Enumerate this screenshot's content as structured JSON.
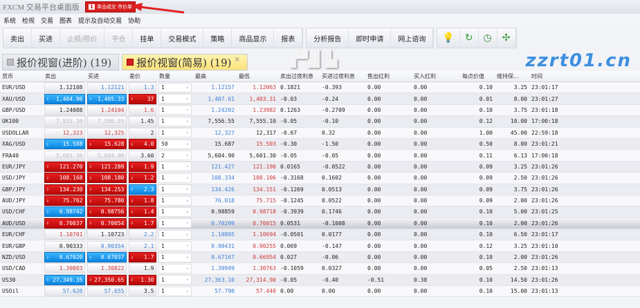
{
  "window": {
    "title": "FXCM 交易平台桌面版",
    "badge_num": "1",
    "badge_text": "单击成交 市价单"
  },
  "menu": [
    "系统",
    "检视",
    "交易",
    "图表",
    "提示及自动交易",
    "协助"
  ],
  "toolbar": {
    "group1": [
      {
        "label": "卖出",
        "enabled": true
      },
      {
        "label": "买进",
        "enabled": true
      },
      {
        "label": "止损/限价",
        "enabled": false
      },
      {
        "label": "平仓",
        "enabled": false
      },
      {
        "label": "挂单",
        "enabled": true
      },
      {
        "label": "交易模式",
        "enabled": true
      },
      {
        "label": "策略",
        "enabled": true
      },
      {
        "label": "商品显示",
        "enabled": true
      },
      {
        "label": "报表",
        "enabled": true
      }
    ],
    "group2": [
      "分析报告",
      "即时申请",
      "网上谘询"
    ],
    "icons": [
      "lightbulb-icon",
      "refresh-icon",
      "clock-icon",
      "network-icon"
    ]
  },
  "tabs": [
    {
      "label": "报价视窗(进阶) (19)",
      "active": false
    },
    {
      "label": "报价视窗(简易) (19)",
      "active": true,
      "close": "×"
    }
  ],
  "colors": {
    "up": "#0a84e0",
    "down": "#c81010",
    "active_tab": "#fbe27a"
  },
  "table": {
    "columns": [
      "货币",
      "卖出",
      "买进",
      "差价",
      "数量",
      "最高",
      "最低",
      "卖出过夜利息",
      "买进过夜利息",
      "售出红利",
      "买入红利",
      "每点价值",
      "维持保...",
      "时间"
    ],
    "rows": [
      {
        "sym": "EUR/USD",
        "sell": "1.12108",
        "sell_s": "k",
        "buy": "1.12121",
        "buy_s": "b",
        "spread": "1.3",
        "spread_s": "b",
        "qty": "1",
        "high": "1.12157",
        "high_s": "b",
        "low": "1.12063",
        "low_s": "rd",
        "ss": "0.1821",
        "bs": "-0.393",
        "sd": "0.00",
        "bd": "0.00",
        "pip": "0.10",
        "mm": "3.25",
        "time": "23:01:17"
      },
      {
        "sym": "XAU/USD",
        "sell": "1,404.96",
        "sell_s": "up",
        "buy": "1,405.33",
        "buy_s": "up",
        "spread": "37",
        "spread_s": "down",
        "qty": "1",
        "high": "1,407.61",
        "high_s": "b",
        "low": "1,403.31",
        "low_s": "rd",
        "ss": "-0.03",
        "bs": "-0.24",
        "sd": "0.00",
        "bd": "0.00",
        "pip": "0.01",
        "mm": "8.00",
        "time": "23:01:27"
      },
      {
        "sym": "GBP/USD",
        "sell": "1.24088",
        "sell_s": "k",
        "buy": "1.24104",
        "buy_s": "rd",
        "spread": "1.6",
        "spread_s": "rd",
        "qty": "1",
        "high": "1.24202",
        "high_s": "b",
        "low": "1.23982",
        "low_s": "rd",
        "ss": "0.1263",
        "bs": "-0.2709",
        "sd": "0.00",
        "bd": "0.00",
        "pip": "0.10",
        "mm": "3.75",
        "time": "23:01:18"
      },
      {
        "sym": "UK100",
        "sell": "7,555.10",
        "sell_s": "g",
        "buy": "7,556.55",
        "buy_s": "g",
        "spread": "1.45",
        "spread_s": "k",
        "qty": "1",
        "high": "7,556.55",
        "high_s": "k",
        "low": "7,555.10",
        "low_s": "k",
        "ss": "-0.05",
        "bs": "-0.10",
        "sd": "0.00",
        "bd": "0.00",
        "pip": "0.12",
        "mm": "10.00",
        "time": "17:00:18"
      },
      {
        "sym": "USDOLLAR",
        "sell": "12,323",
        "sell_s": "rd",
        "buy": "12,325",
        "buy_s": "rd",
        "spread": "2",
        "spread_s": "k",
        "qty": "1",
        "high": "12,327",
        "high_s": "b",
        "low": "12,317",
        "low_s": "k",
        "ss": "-0.67",
        "bs": "0.32",
        "sd": "0.00",
        "bd": "0.00",
        "pip": "1.00",
        "mm": "45.00",
        "time": "22:59:18"
      },
      {
        "sym": "XAG/USD",
        "sell": "15.588",
        "sell_s": "up",
        "buy": "15.628",
        "buy_s": "down",
        "spread": "4.0",
        "spread_s": "down",
        "qty": "50",
        "high": "15.687",
        "high_s": "k",
        "low": "15.503",
        "low_s": "rd",
        "ss": "-0.30",
        "bs": "-1.50",
        "sd": "0.00",
        "bd": "0.00",
        "pip": "0.50",
        "mm": "8.00",
        "time": "23:01:21"
      },
      {
        "sym": "FRA40",
        "sell": "5,601.30",
        "sell_s": "g",
        "buy": "5,604.90",
        "buy_s": "g",
        "spread": "3.60",
        "spread_s": "k",
        "qty": "2",
        "high": "5,604.90",
        "high_s": "k",
        "low": "5,601.30",
        "low_s": "k",
        "ss": "-0.05",
        "bs": "-0.05",
        "sd": "0.00",
        "bd": "0.00",
        "pip": "0.11",
        "mm": "6.13",
        "time": "17:00:18"
      },
      {
        "sym": "EUR/JPY",
        "sell": "121.270",
        "sell_s": "down",
        "buy": "121.289",
        "buy_s": "down",
        "spread": "1.9",
        "spread_s": "down",
        "qty": "1",
        "high": "121.427",
        "high_s": "b",
        "low": "121.190",
        "low_s": "rd",
        "ss": "0.0165",
        "bs": "-0.0522",
        "sd": "0.00",
        "bd": "0.00",
        "pip": "0.09",
        "mm": "3.25",
        "time": "23:01:26"
      },
      {
        "sym": "USD/JPY",
        "sell": "108.168",
        "sell_s": "down",
        "buy": "108.180",
        "buy_s": "down",
        "spread": "1.2",
        "spread_s": "down",
        "qty": "1",
        "high": "108.334",
        "high_s": "b",
        "low": "108.106",
        "low_s": "rd",
        "ss": "-0.3168",
        "bs": "0.1602",
        "sd": "0.00",
        "bd": "0.00",
        "pip": "0.09",
        "mm": "2.50",
        "time": "23:01:26"
      },
      {
        "sym": "GBP/JPY",
        "sell": "134.230",
        "sell_s": "down",
        "buy": "134.253",
        "buy_s": "down",
        "spread": "2.3",
        "spread_s": "up",
        "qty": "1",
        "high": "134.426",
        "high_s": "b",
        "low": "134.151",
        "low_s": "rd",
        "ss": "-0.1269",
        "bs": "0.0513",
        "sd": "0.00",
        "bd": "0.00",
        "pip": "0.09",
        "mm": "3.75",
        "time": "23:01:26"
      },
      {
        "sym": "AUD/JPY",
        "sell": "75.762",
        "sell_s": "down",
        "buy": "75.780",
        "buy_s": "down",
        "spread": "1.8",
        "spread_s": "down",
        "qty": "1",
        "high": "76.018",
        "high_s": "b",
        "low": "75.715",
        "low_s": "rd",
        "ss": "-0.1245",
        "bs": "0.0522",
        "sd": "0.00",
        "bd": "0.00",
        "pip": "0.09",
        "mm": "2.00",
        "time": "23:01:26"
      },
      {
        "sym": "USD/CHF",
        "sell": "0.98742",
        "sell_s": "up",
        "buy": "0.98756",
        "buy_s": "down",
        "spread": "1.4",
        "spread_s": "down",
        "qty": "1",
        "high": "0.98859",
        "high_s": "k",
        "low": "0.98718",
        "low_s": "rd",
        "ss": "-0.3939",
        "bs": "0.1746",
        "sd": "0.00",
        "bd": "0.00",
        "pip": "0.10",
        "mm": "5.00",
        "time": "23:01:25"
      },
      {
        "sym": "AUD/USD",
        "selected": true,
        "sell": "0.70037",
        "sell_s": "down",
        "buy": "0.70054",
        "buy_s": "down",
        "spread": "1.7",
        "spread_s": "down",
        "qty": "1",
        "high": "0.70209",
        "high_s": "b",
        "low": "0.70015",
        "low_s": "rd",
        "ss": "0.0531",
        "bs": "-0.1008",
        "sd": "0.00",
        "bd": "0.00",
        "pip": "0.10",
        "mm": "2.00",
        "time": "23:01:26"
      },
      {
        "sym": "EUR/CHF",
        "sell": "1.10701",
        "sell_s": "rd",
        "buy": "1.10723",
        "buy_s": "k",
        "spread": "2.2",
        "spread_s": "b",
        "qty": "1",
        "high": "1.10805",
        "high_s": "b",
        "low": "1.10694",
        "low_s": "rd",
        "ss": "-0.0501",
        "bs": "0.0177",
        "sd": "0.00",
        "bd": "0.00",
        "pip": "0.10",
        "mm": "6.50",
        "time": "23:01:17"
      },
      {
        "sym": "EUR/GBP",
        "sell": "0.90333",
        "sell_s": "k",
        "buy": "0.90354",
        "buy_s": "b",
        "spread": "2.1",
        "spread_s": "b",
        "qty": "1",
        "high": "0.90431",
        "high_s": "b",
        "low": "0.90255",
        "low_s": "rd",
        "ss": "0.069",
        "bs": "-0.147",
        "sd": "0.00",
        "bd": "0.00",
        "pip": "0.12",
        "mm": "3.25",
        "time": "23:01:10"
      },
      {
        "sym": "NZD/USD",
        "sell": "0.67020",
        "sell_s": "up",
        "buy": "0.67037",
        "buy_s": "up",
        "spread": "1.7",
        "spread_s": "down",
        "qty": "1",
        "high": "0.67167",
        "high_s": "b",
        "low": "0.66954",
        "low_s": "rd",
        "ss": "0.027",
        "bs": "-0.06",
        "sd": "0.00",
        "bd": "0.00",
        "pip": "0.10",
        "mm": "2.00",
        "time": "23:01:26"
      },
      {
        "sym": "USD/CAD",
        "sell": "1.30803",
        "sell_s": "rd",
        "buy": "1.30822",
        "buy_s": "rd",
        "spread": "1.9",
        "spread_s": "k",
        "qty": "1",
        "high": "1.30949",
        "high_s": "b",
        "low": "1.30763",
        "low_s": "rd",
        "ss": "-0.1059",
        "bs": "0.0327",
        "sd": "0.00",
        "bd": "0.00",
        "pip": "0.05",
        "mm": "2.50",
        "time": "23:01:13"
      },
      {
        "sym": "US30",
        "sell": "27,349.35",
        "sell_s": "up",
        "buy": "27,350.65",
        "buy_s": "down",
        "spread": "1.30",
        "spread_s": "down",
        "qty": "1",
        "high": "27,363.10",
        "high_s": "b",
        "low": "27,314.90",
        "low_s": "rd",
        "ss": "-0.05",
        "bs": "-0.40",
        "sd": "-0.51",
        "bd": "0.38",
        "pip": "0.10",
        "mm": "14.50",
        "time": "23:01:26"
      },
      {
        "sym": "USOil",
        "sell": "57.620",
        "sell_s": "b",
        "buy": "57.655",
        "buy_s": "b",
        "spread": "3.5",
        "spread_s": "k",
        "qty": "1",
        "high": "57.790",
        "high_s": "b",
        "low": "57.440",
        "low_s": "rd",
        "ss": "0.00",
        "bs": "0.00",
        "sd": "0.00",
        "bd": "0.00",
        "pip": "0.10",
        "mm": "15.00",
        "time": "23:01:13"
      }
    ]
  },
  "watermark": {
    "text": "zzrt01.cn"
  }
}
